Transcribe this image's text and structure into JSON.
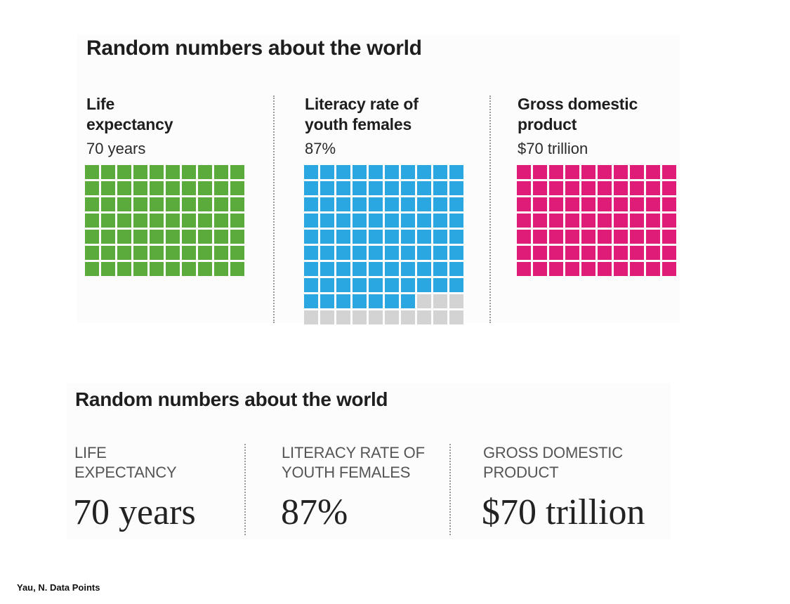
{
  "top": {
    "title": "Random numbers about the world",
    "columns": [
      {
        "label_line1": "Life",
        "label_line2": "expectancy",
        "value": "70 years"
      },
      {
        "label_line1": "Literacy rate of",
        "label_line2": "youth females",
        "value": "87%"
      },
      {
        "label_line1": "Gross domestic",
        "label_line2": "product",
        "value": "$70 trillion"
      }
    ]
  },
  "bottom": {
    "title": "Random numbers about the world",
    "columns": [
      {
        "label_line1": "LIFE",
        "label_line2": "EXPECTANCY",
        "value": "70 years"
      },
      {
        "label_line1": "LITERACY RATE OF",
        "label_line2": "YOUTH FEMALES",
        "value": "87%"
      },
      {
        "label_line1": "GROSS DOMESTIC",
        "label_line2": "PRODUCT",
        "value": "$70 trillion"
      }
    ]
  },
  "caption": "Yau, N. Data Points",
  "colors": {
    "life": "#5aaa3c",
    "literacy": "#2aa7e0",
    "gdp": "#e01c79",
    "empty": "#d3d3d3"
  },
  "chart_data": [
    {
      "type": "waffle",
      "grid_cols": 10,
      "series": [
        {
          "name": "Life expectancy",
          "filled": 70,
          "total": 70
        },
        {
          "name": "Literacy rate of youth females",
          "filled": 87,
          "total": 100
        },
        {
          "name": "Gross domestic product",
          "filled": 70,
          "total": 70
        }
      ]
    }
  ]
}
